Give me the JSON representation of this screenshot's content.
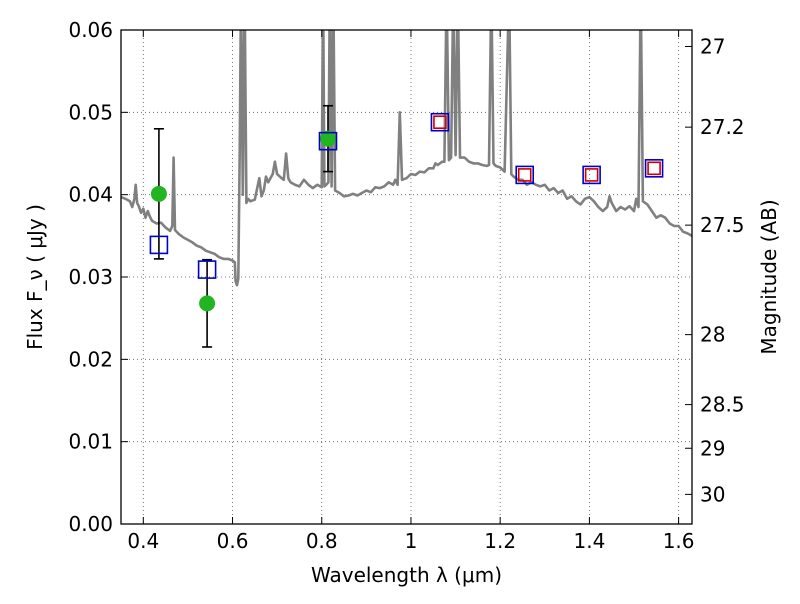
{
  "chart_data": {
    "type": "scatter",
    "xlabel": "Wavelength  λ (μm)",
    "ylabel": "Flux  F_ν  ( μJy )",
    "y2label": "Magnitude (AB)",
    "xlim": [
      0.35,
      1.63
    ],
    "ylim": [
      0.0,
      0.06
    ],
    "grid": true,
    "x_ticks": [
      {
        "value": 0.4,
        "label": "0.4"
      },
      {
        "value": 0.6,
        "label": "0.6"
      },
      {
        "value": 0.8,
        "label": "0.8"
      },
      {
        "value": 1.0,
        "label": "1"
      },
      {
        "value": 1.2,
        "label": "1.2"
      },
      {
        "value": 1.4,
        "label": "1.4"
      },
      {
        "value": 1.6,
        "label": "1.6"
      }
    ],
    "y_ticks": [
      {
        "value": 0.0,
        "label": "0.00"
      },
      {
        "value": 0.01,
        "label": "0.01"
      },
      {
        "value": 0.02,
        "label": "0.02"
      },
      {
        "value": 0.03,
        "label": "0.03"
      },
      {
        "value": 0.04,
        "label": "0.04"
      },
      {
        "value": 0.05,
        "label": "0.05"
      },
      {
        "value": 0.06,
        "label": "0.06"
      }
    ],
    "y2_ticks": [
      {
        "flux": 0.058,
        "label": "27"
      },
      {
        "flux": 0.0482,
        "label": "27.2"
      },
      {
        "flux": 0.0363,
        "label": "27.5"
      },
      {
        "flux": 0.023,
        "label": "28"
      },
      {
        "flux": 0.0145,
        "label": "28.5"
      },
      {
        "flux": 0.0092,
        "label": "29"
      },
      {
        "flux": 0.0036,
        "label": "30"
      }
    ],
    "series": [
      {
        "kind": "line",
        "color": "#808080",
        "points": [
          [
            0.35,
            0.0397
          ],
          [
            0.36,
            0.0395
          ],
          [
            0.37,
            0.0392
          ],
          [
            0.375,
            0.0385
          ],
          [
            0.38,
            0.0395
          ],
          [
            0.383,
            0.0412
          ],
          [
            0.386,
            0.039
          ],
          [
            0.39,
            0.0386
          ],
          [
            0.395,
            0.0378
          ],
          [
            0.4,
            0.0383
          ],
          [
            0.405,
            0.0372
          ],
          [
            0.41,
            0.038
          ],
          [
            0.415,
            0.0373
          ],
          [
            0.42,
            0.0368
          ],
          [
            0.43,
            0.0365
          ],
          [
            0.44,
            0.0366
          ],
          [
            0.45,
            0.036
          ],
          [
            0.455,
            0.0358
          ],
          [
            0.46,
            0.0356
          ],
          [
            0.465,
            0.0362
          ],
          [
            0.468,
            0.0445
          ],
          [
            0.471,
            0.0357
          ],
          [
            0.48,
            0.0352
          ],
          [
            0.49,
            0.0348
          ],
          [
            0.5,
            0.0345
          ],
          [
            0.51,
            0.0342
          ],
          [
            0.52,
            0.0338
          ],
          [
            0.53,
            0.0336
          ],
          [
            0.54,
            0.0332
          ],
          [
            0.55,
            0.033
          ],
          [
            0.56,
            0.0328
          ],
          [
            0.57,
            0.0324
          ],
          [
            0.58,
            0.0322
          ],
          [
            0.59,
            0.0322
          ],
          [
            0.6,
            0.032
          ],
          [
            0.605,
            0.0318
          ],
          [
            0.607,
            0.0295
          ],
          [
            0.61,
            0.029
          ],
          [
            0.613,
            0.0298
          ],
          [
            0.616,
            0.045
          ],
          [
            0.619,
            0.065
          ],
          [
            0.623,
            0.04
          ],
          [
            0.627,
            0.065
          ],
          [
            0.631,
            0.039
          ],
          [
            0.635,
            0.0395
          ],
          [
            0.64,
            0.0392
          ],
          [
            0.65,
            0.0394
          ],
          [
            0.66,
            0.042
          ],
          [
            0.665,
            0.0398
          ],
          [
            0.67,
            0.0405
          ],
          [
            0.675,
            0.0422
          ],
          [
            0.68,
            0.0415
          ],
          [
            0.69,
            0.0425
          ],
          [
            0.695,
            0.044
          ],
          [
            0.7,
            0.0425
          ],
          [
            0.71,
            0.042
          ],
          [
            0.715,
            0.0418
          ],
          [
            0.72,
            0.045
          ],
          [
            0.725,
            0.042
          ],
          [
            0.73,
            0.0415
          ],
          [
            0.74,
            0.0412
          ],
          [
            0.75,
            0.041
          ],
          [
            0.76,
            0.0418
          ],
          [
            0.77,
            0.0412
          ],
          [
            0.78,
            0.0408
          ],
          [
            0.79,
            0.0412
          ],
          [
            0.8,
            0.0409
          ],
          [
            0.803,
            0.065
          ],
          [
            0.806,
            0.041
          ],
          [
            0.81,
            0.0412
          ],
          [
            0.815,
            0.0415
          ],
          [
            0.818,
            0.065
          ],
          [
            0.822,
            0.041
          ],
          [
            0.826,
            0.065
          ],
          [
            0.83,
            0.0405
          ],
          [
            0.84,
            0.0402
          ],
          [
            0.85,
            0.0398
          ],
          [
            0.86,
            0.0399
          ],
          [
            0.87,
            0.0401
          ],
          [
            0.88,
            0.0399
          ],
          [
            0.89,
            0.0402
          ],
          [
            0.9,
            0.0405
          ],
          [
            0.91,
            0.0403
          ],
          [
            0.92,
            0.0409
          ],
          [
            0.93,
            0.0408
          ],
          [
            0.94,
            0.041
          ],
          [
            0.95,
            0.0415
          ],
          [
            0.96,
            0.0412
          ],
          [
            0.965,
            0.0418
          ],
          [
            0.97,
            0.0412
          ],
          [
            0.975,
            0.05
          ],
          [
            0.98,
            0.0418
          ],
          [
            0.99,
            0.042
          ],
          [
            1.0,
            0.0425
          ],
          [
            1.01,
            0.0424
          ],
          [
            1.02,
            0.0428
          ],
          [
            1.03,
            0.0427
          ],
          [
            1.04,
            0.0432
          ],
          [
            1.05,
            0.0432
          ],
          [
            1.055,
            0.0438
          ],
          [
            1.06,
            0.0436
          ],
          [
            1.07,
            0.044
          ],
          [
            1.075,
            0.044
          ],
          [
            1.08,
            0.065
          ],
          [
            1.085,
            0.0442
          ],
          [
            1.09,
            0.0445
          ],
          [
            1.095,
            0.065
          ],
          [
            1.1,
            0.0448
          ],
          [
            1.105,
            0.065
          ],
          [
            1.11,
            0.0445
          ],
          [
            1.12,
            0.0445
          ],
          [
            1.13,
            0.044
          ],
          [
            1.14,
            0.0438
          ],
          [
            1.15,
            0.0438
          ],
          [
            1.16,
            0.0436
          ],
          [
            1.17,
            0.0435
          ],
          [
            1.175,
            0.0436
          ],
          [
            1.18,
            0.065
          ],
          [
            1.185,
            0.0438
          ],
          [
            1.19,
            0.0435
          ],
          [
            1.2,
            0.0433
          ],
          [
            1.21,
            0.0428
          ],
          [
            1.22,
            0.065
          ],
          [
            1.225,
            0.0425
          ],
          [
            1.23,
            0.0422
          ],
          [
            1.24,
            0.0418
          ],
          [
            1.25,
            0.0418
          ],
          [
            1.26,
            0.0412
          ],
          [
            1.27,
            0.0415
          ],
          [
            1.28,
            0.0412
          ],
          [
            1.29,
            0.041
          ],
          [
            1.3,
            0.0412
          ],
          [
            1.31,
            0.0405
          ],
          [
            1.32,
            0.0408
          ],
          [
            1.33,
            0.0402
          ],
          [
            1.34,
            0.0405
          ],
          [
            1.35,
            0.0395
          ],
          [
            1.36,
            0.0398
          ],
          [
            1.37,
            0.0392
          ],
          [
            1.38,
            0.0388
          ],
          [
            1.39,
            0.0395
          ],
          [
            1.4,
            0.0397
          ],
          [
            1.41,
            0.0392
          ],
          [
            1.42,
            0.0385
          ],
          [
            1.43,
            0.038
          ],
          [
            1.44,
            0.0385
          ],
          [
            1.445,
            0.0398
          ],
          [
            1.45,
            0.039
          ],
          [
            1.46,
            0.038
          ],
          [
            1.47,
            0.0385
          ],
          [
            1.48,
            0.0382
          ],
          [
            1.49,
            0.0386
          ],
          [
            1.5,
            0.038
          ],
          [
            1.505,
            0.0395
          ],
          [
            1.51,
            0.0385
          ],
          [
            1.515,
            0.065
          ],
          [
            1.52,
            0.0392
          ],
          [
            1.53,
            0.0388
          ],
          [
            1.54,
            0.038
          ],
          [
            1.55,
            0.0372
          ],
          [
            1.56,
            0.0375
          ],
          [
            1.57,
            0.0372
          ],
          [
            1.58,
            0.0365
          ],
          [
            1.59,
            0.0362
          ],
          [
            1.6,
            0.0362
          ],
          [
            1.61,
            0.0355
          ],
          [
            1.62,
            0.0353
          ],
          [
            1.63,
            0.035
          ]
        ]
      },
      {
        "kind": "points",
        "marker": "circle",
        "color": "#22b522",
        "points": [
          {
            "x": 0.435,
            "y": 0.0401,
            "err": 0.0079
          },
          {
            "x": 0.543,
            "y": 0.0268,
            "err": 0.0053
          },
          {
            "x": 0.814,
            "y": 0.0468,
            "err": 0.004
          }
        ]
      },
      {
        "kind": "points",
        "marker": "square",
        "color": "#0000cc",
        "points": [
          {
            "x": 0.435,
            "y": 0.0339
          },
          {
            "x": 0.543,
            "y": 0.0309
          },
          {
            "x": 0.814,
            "y": 0.0465
          },
          {
            "x": 1.065,
            "y": 0.0488
          },
          {
            "x": 1.255,
            "y": 0.0424
          },
          {
            "x": 1.405,
            "y": 0.0424
          },
          {
            "x": 1.545,
            "y": 0.0432
          }
        ]
      },
      {
        "kind": "points",
        "marker": "square",
        "color": "#cc0000",
        "points": [
          {
            "x": 1.065,
            "y": 0.0488
          },
          {
            "x": 1.255,
            "y": 0.0424
          },
          {
            "x": 1.405,
            "y": 0.0424
          },
          {
            "x": 1.545,
            "y": 0.0432
          }
        ]
      }
    ]
  }
}
